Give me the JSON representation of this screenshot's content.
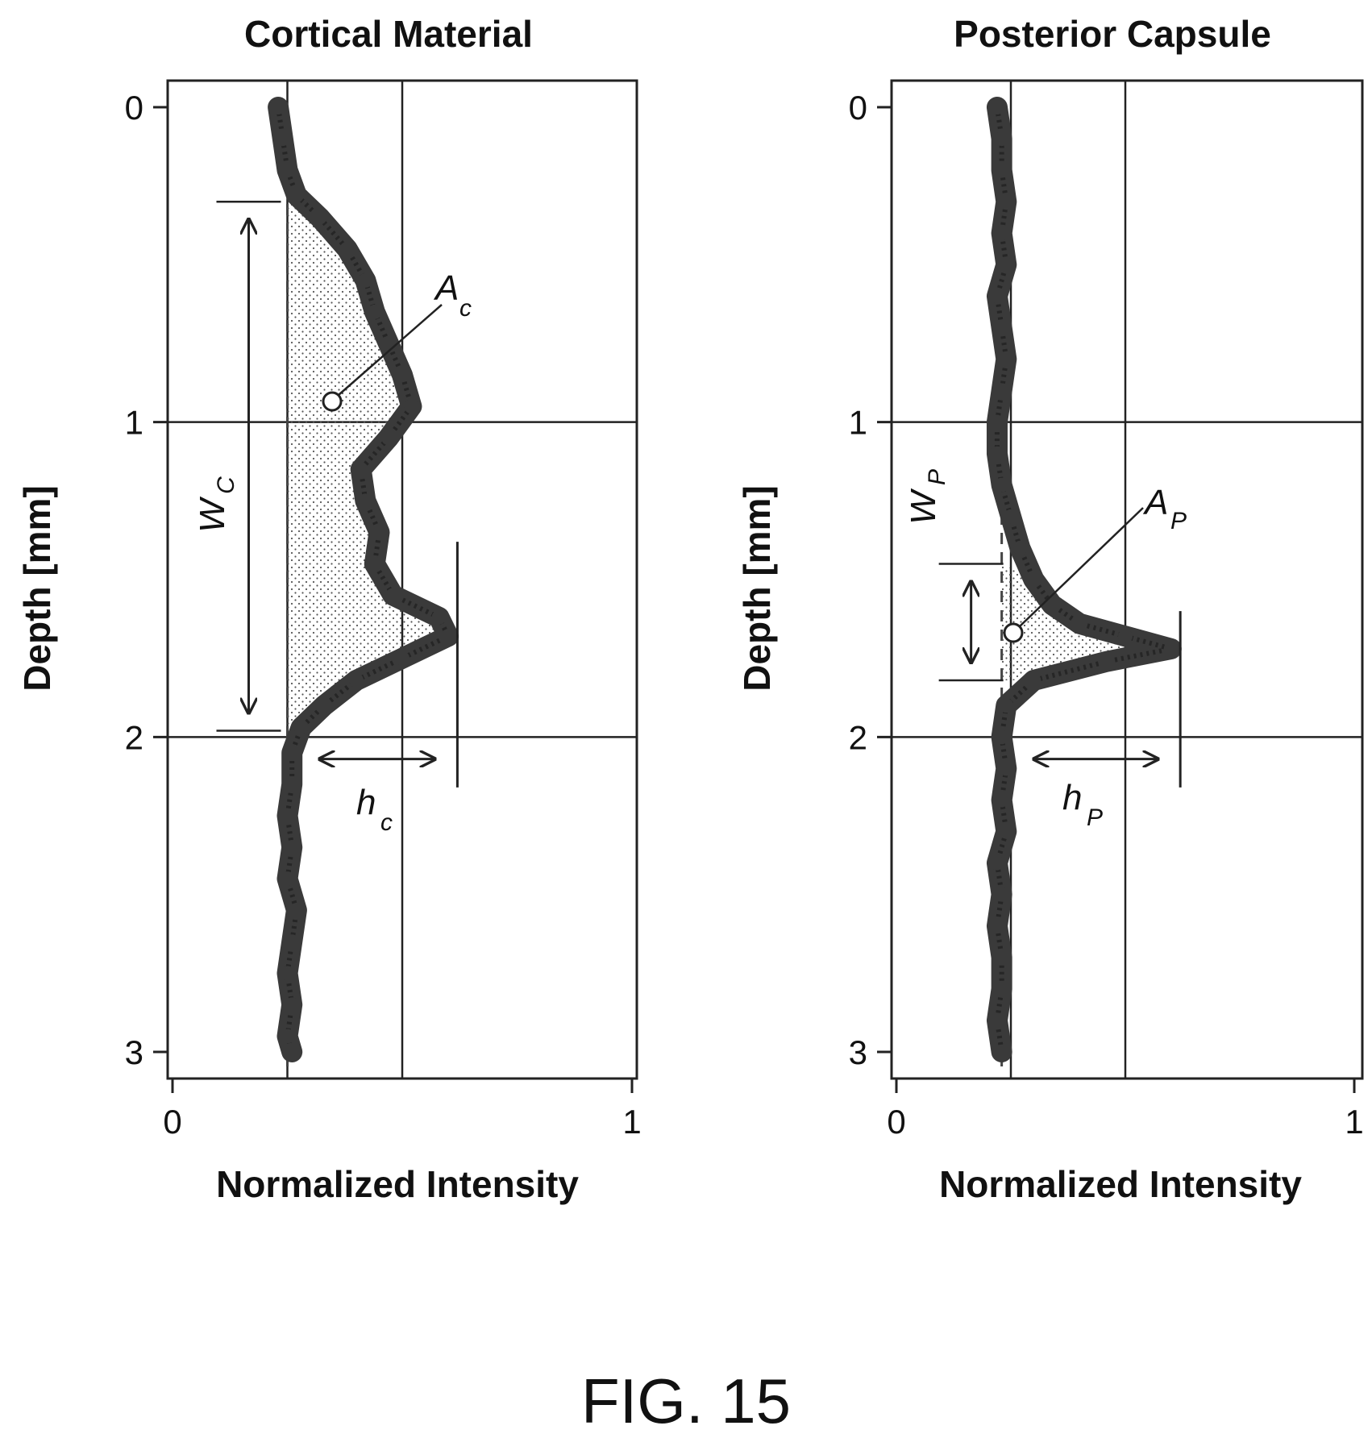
{
  "figure": {
    "caption": "FIG. 15",
    "colors": {
      "trace": "#3a3a3a",
      "frame": "#222222",
      "fill_dots": "#555555"
    }
  },
  "chart_data": [
    {
      "type": "line",
      "title": "Cortical Material",
      "xlabel": "Normalized Intensity",
      "ylabel": "Depth [mm]",
      "xlim": [
        0,
        1
      ],
      "ylim": [
        3.1,
        -0.08
      ],
      "y_inverted": true,
      "xticks": [
        "0",
        "1"
      ],
      "yticks": [
        "0",
        "1",
        "2",
        "3"
      ],
      "grid_x": [
        0.25,
        0.5
      ],
      "grid_y": [
        1,
        2
      ],
      "depth": [
        0.0,
        0.1,
        0.2,
        0.28,
        0.35,
        0.45,
        0.55,
        0.65,
        0.75,
        0.85,
        0.95,
        1.05,
        1.15,
        1.25,
        1.35,
        1.45,
        1.55,
        1.62,
        1.68,
        1.75,
        1.82,
        1.9,
        1.97,
        2.05,
        2.15,
        2.25,
        2.35,
        2.45,
        2.55,
        2.65,
        2.75,
        2.85,
        2.95,
        3.0
      ],
      "intensity": [
        0.23,
        0.24,
        0.25,
        0.27,
        0.32,
        0.38,
        0.42,
        0.44,
        0.47,
        0.5,
        0.52,
        0.47,
        0.41,
        0.42,
        0.45,
        0.44,
        0.48,
        0.58,
        0.6,
        0.5,
        0.4,
        0.33,
        0.28,
        0.26,
        0.26,
        0.25,
        0.26,
        0.25,
        0.27,
        0.26,
        0.25,
        0.26,
        0.25,
        0.26
      ],
      "baseline": 0.25,
      "region": {
        "start": 0.3,
        "end": 1.98
      },
      "peak_line": 0.62,
      "annotations": [
        {
          "symbol": "W",
          "subscript": "C"
        },
        {
          "symbol": "A",
          "subscript": "c"
        },
        {
          "symbol": "h",
          "subscript": "c"
        }
      ]
    },
    {
      "type": "line",
      "title": "Posterior Capsule",
      "xlabel": "Normalized Intensity",
      "ylabel": "Depth [mm]",
      "xlim": [
        0,
        1
      ],
      "ylim": [
        3.1,
        -0.08
      ],
      "y_inverted": true,
      "xticks": [
        "0",
        "1"
      ],
      "yticks": [
        "0",
        "1",
        "2",
        "3"
      ],
      "grid_x": [
        0.25,
        0.5
      ],
      "grid_y": [
        1,
        2
      ],
      "depth": [
        0.0,
        0.1,
        0.2,
        0.3,
        0.4,
        0.5,
        0.6,
        0.7,
        0.8,
        0.9,
        1.0,
        1.1,
        1.2,
        1.3,
        1.4,
        1.5,
        1.58,
        1.64,
        1.68,
        1.72,
        1.76,
        1.82,
        1.9,
        2.0,
        2.1,
        2.2,
        2.3,
        2.4,
        2.5,
        2.6,
        2.7,
        2.8,
        2.9,
        3.0
      ],
      "intensity": [
        0.22,
        0.23,
        0.23,
        0.24,
        0.23,
        0.24,
        0.22,
        0.23,
        0.24,
        0.23,
        0.22,
        0.22,
        0.23,
        0.25,
        0.27,
        0.3,
        0.34,
        0.4,
        0.5,
        0.6,
        0.46,
        0.3,
        0.24,
        0.23,
        0.24,
        0.23,
        0.24,
        0.22,
        0.23,
        0.22,
        0.23,
        0.23,
        0.22,
        0.23
      ],
      "baseline": 0.23,
      "region": {
        "start": 1.45,
        "end": 1.82
      },
      "peak_line": 0.62,
      "annotations": [
        {
          "symbol": "W",
          "subscript": "P"
        },
        {
          "symbol": "A",
          "subscript": "P"
        },
        {
          "symbol": "h",
          "subscript": "P"
        }
      ]
    }
  ]
}
